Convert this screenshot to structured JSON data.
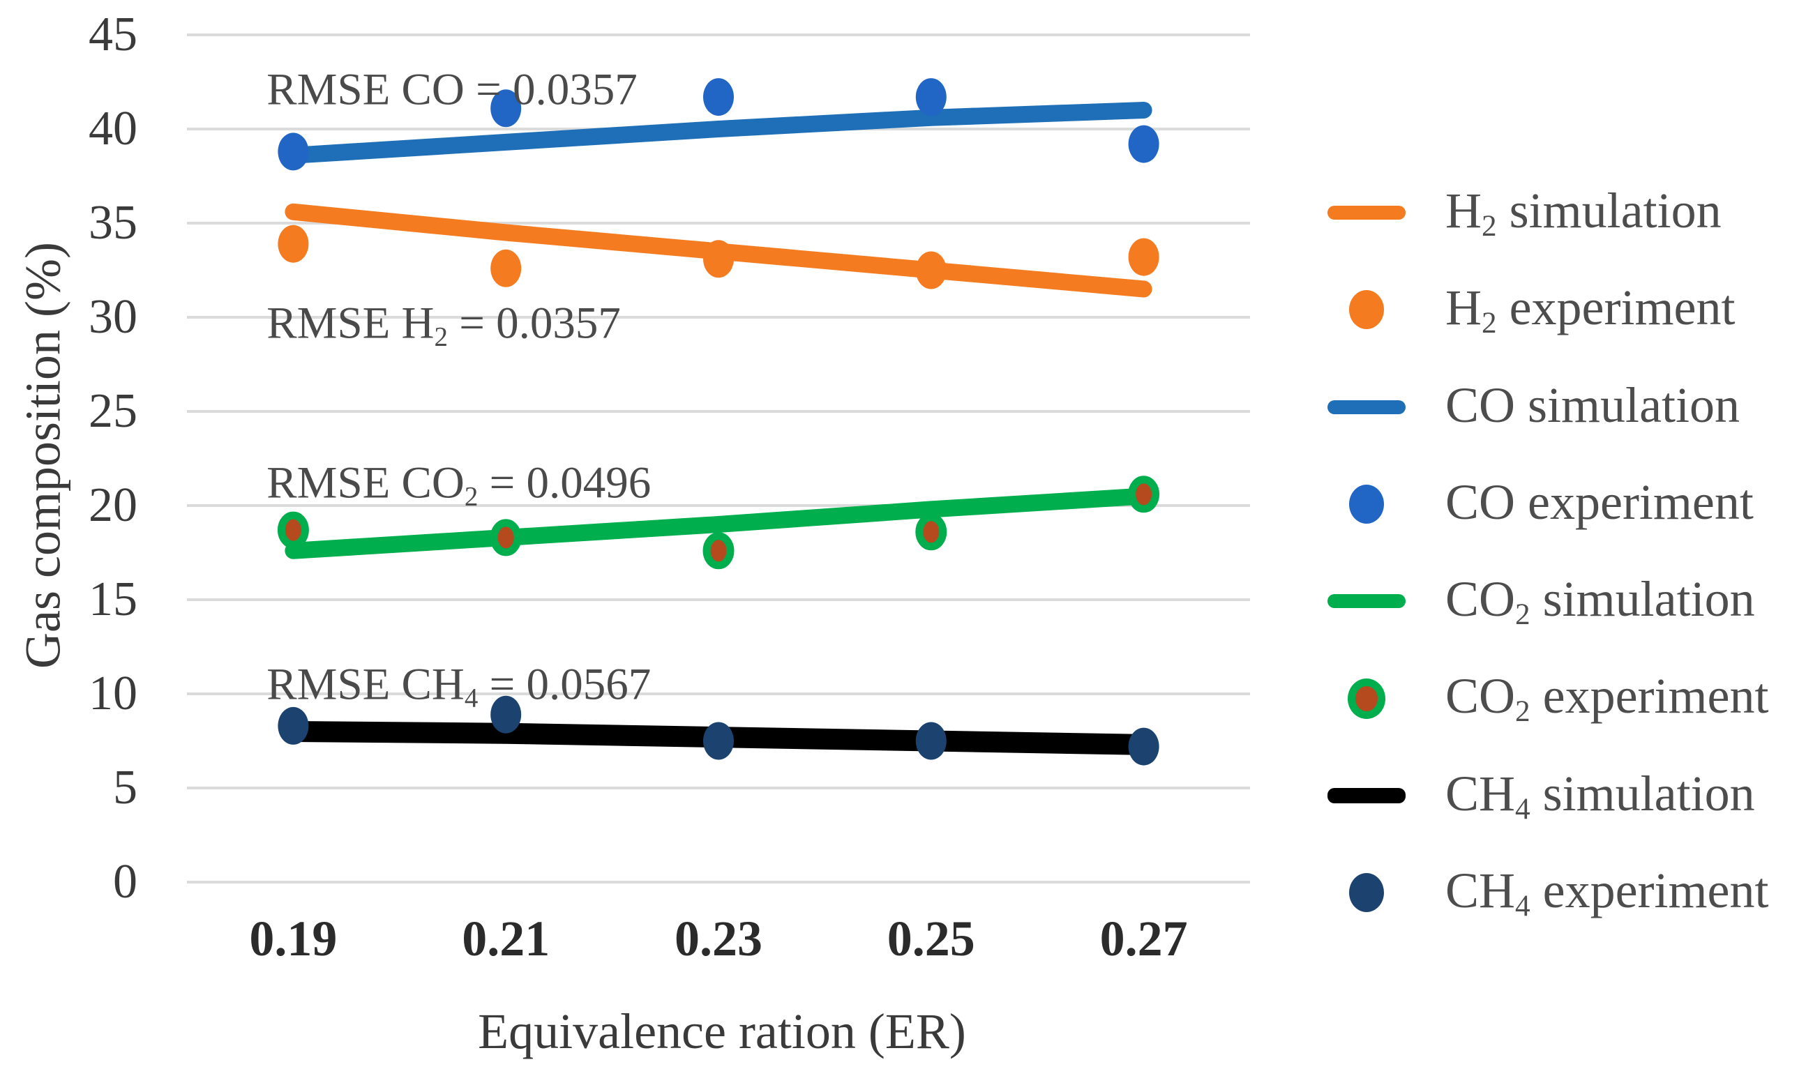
{
  "figure": {
    "background": "#ffffff",
    "grid_color": "#dbdbdb",
    "tick_text_color": "#3a3a3a",
    "annotation_text_color": "#4a4a4a",
    "legend_text_color": "#4d4d4d"
  },
  "chart_data": {
    "type": "line+scatter",
    "title": "",
    "xlabel": "Equivalence ration (ER)",
    "ylabel": "Gas composition (%)",
    "x_categories": [
      "0.19",
      "0.21",
      "0.23",
      "0.25",
      "0.27"
    ],
    "yticks": [
      0,
      5,
      10,
      15,
      20,
      25,
      30,
      35,
      40,
      45
    ],
    "ylim": [
      0,
      45
    ],
    "grid": "horizontal",
    "legend_position": "right",
    "series": [
      {
        "key": "h2-simulation",
        "label": {
          "pre": "H",
          "sub": "2",
          "post": " simulation"
        },
        "kind": "line",
        "color": "#f57b20",
        "line_width": 24,
        "values": [
          35.6,
          34.5,
          33.5,
          32.5,
          31.5
        ]
      },
      {
        "key": "h2-experiment",
        "label": {
          "pre": "H",
          "sub": "2",
          "post": " experiment"
        },
        "kind": "scatter",
        "color": "#f57b20",
        "values": [
          33.9,
          32.6,
          33.1,
          32.5,
          33.2
        ]
      },
      {
        "key": "co-simulation",
        "label": {
          "pre": "CO",
          "sub": "",
          "post": " simulation"
        },
        "kind": "line",
        "color": "#1e6fb8",
        "line_width": 24,
        "values": [
          38.6,
          39.3,
          40.0,
          40.6,
          41.0
        ]
      },
      {
        "key": "co-experiment",
        "label": {
          "pre": "CO",
          "sub": "",
          "post": " experiment"
        },
        "kind": "scatter",
        "color": "#2166c4",
        "values": [
          38.8,
          41.1,
          41.7,
          41.7,
          39.2
        ]
      },
      {
        "key": "co2-simulation",
        "label": {
          "pre": "CO",
          "sub": "2",
          "post": " simulation"
        },
        "kind": "line",
        "color": "#00ae4d",
        "line_width": 24,
        "values": [
          17.6,
          18.3,
          19.0,
          19.8,
          20.5
        ]
      },
      {
        "key": "co2-experiment",
        "label": {
          "pre": "CO",
          "sub": "2",
          "post": " experiment"
        },
        "kind": "scatter",
        "color": "#b54a1e",
        "ring": "#00ae4d",
        "values": [
          18.7,
          18.3,
          17.6,
          18.6,
          20.6
        ]
      },
      {
        "key": "ch4-simulation",
        "label": {
          "pre": "CH",
          "sub": "4",
          "post": " simulation"
        },
        "kind": "line",
        "color": "#000000",
        "line_width": 30,
        "values": [
          8.0,
          7.9,
          7.7,
          7.5,
          7.3
        ]
      },
      {
        "key": "ch4-experiment",
        "label": {
          "pre": "CH",
          "sub": "4",
          "post": " experiment"
        },
        "kind": "scatter",
        "color": "#1c4370",
        "values": [
          8.3,
          8.9,
          7.5,
          7.5,
          7.2
        ]
      }
    ],
    "annotations": [
      {
        "key": "co",
        "pre": "RMSE CO",
        "sub": "",
        "post": " = 0.0357",
        "x_frac": 0.075,
        "y_value": 42.0
      },
      {
        "key": "h2",
        "pre": "RMSE H",
        "sub": "2",
        "post": " = 0.0357",
        "x_frac": 0.075,
        "y_value": 29.6
      },
      {
        "key": "co2",
        "pre": "RMSE CO",
        "sub": "2",
        "post": " = 0.0496",
        "x_frac": 0.075,
        "y_value": 21.1
      },
      {
        "key": "ch4",
        "pre": "RMSE CH",
        "sub": "4",
        "post": " = 0.0567",
        "x_frac": 0.075,
        "y_value": 10.4
      }
    ]
  }
}
